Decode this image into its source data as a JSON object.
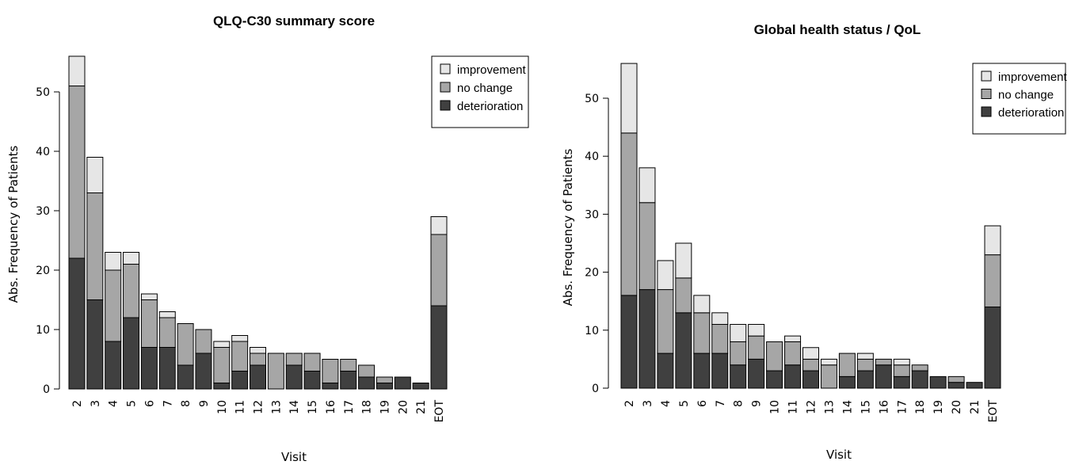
{
  "charts": [
    {
      "title": "QLQ-C30 summary score",
      "xlabel": "Visit",
      "ylabel": "Abs. Frequency of Patients"
    },
    {
      "title": "Global health status / QoL",
      "xlabel": "Visit",
      "ylabel": "Abs. Frequency of Patients"
    }
  ],
  "chart_data": [
    {
      "type": "bar",
      "stacked": true,
      "title": "QLQ-C30 summary score",
      "xlabel": "Visit",
      "ylabel": "Abs. Frequency of Patients",
      "ylim": [
        0,
        56
      ],
      "yticks": [
        0,
        10,
        20,
        30,
        40,
        50
      ],
      "categories": [
        "2",
        "3",
        "4",
        "5",
        "6",
        "7",
        "8",
        "9",
        "10",
        "11",
        "12",
        "13",
        "14",
        "15",
        "16",
        "17",
        "18",
        "19",
        "20",
        "21",
        "EOT"
      ],
      "series": [
        {
          "name": "deterioration",
          "color": "#404040",
          "values": [
            22,
            15,
            8,
            12,
            7,
            7,
            4,
            6,
            1,
            3,
            4,
            0,
            4,
            3,
            1,
            3,
            2,
            1,
            2,
            1,
            14
          ]
        },
        {
          "name": "no change",
          "color": "#a6a6a6",
          "values": [
            29,
            18,
            12,
            9,
            8,
            5,
            7,
            4,
            6,
            5,
            2,
            6,
            2,
            3,
            4,
            2,
            2,
            1,
            0,
            0,
            12
          ]
        },
        {
          "name": "improvement",
          "color": "#e6e6e6",
          "values": [
            5,
            6,
            3,
            2,
            1,
            1,
            0,
            0,
            1,
            1,
            1,
            0,
            0,
            0,
            0,
            0,
            0,
            0,
            0,
            0,
            3
          ]
        }
      ],
      "legend": {
        "position": "top-right",
        "entries": [
          "improvement",
          "no change",
          "deterioration"
        ]
      }
    },
    {
      "type": "bar",
      "stacked": true,
      "title": "Global health status / QoL",
      "xlabel": "Visit",
      "ylabel": "Abs. Frequency of Patients",
      "ylim": [
        0,
        56
      ],
      "yticks": [
        0,
        10,
        20,
        30,
        40,
        50
      ],
      "categories": [
        "2",
        "3",
        "4",
        "5",
        "6",
        "7",
        "8",
        "9",
        "10",
        "11",
        "12",
        "13",
        "14",
        "15",
        "16",
        "17",
        "18",
        "19",
        "20",
        "21",
        "EOT"
      ],
      "series": [
        {
          "name": "deterioration",
          "color": "#404040",
          "values": [
            16,
            17,
            6,
            13,
            6,
            6,
            4,
            5,
            3,
            4,
            3,
            0,
            2,
            3,
            4,
            2,
            3,
            2,
            1,
            1,
            14
          ]
        },
        {
          "name": "no change",
          "color": "#a6a6a6",
          "values": [
            28,
            15,
            11,
            6,
            7,
            5,
            4,
            4,
            5,
            4,
            2,
            4,
            4,
            2,
            1,
            2,
            1,
            0,
            1,
            0,
            9
          ]
        },
        {
          "name": "improvement",
          "color": "#e6e6e6",
          "values": [
            12,
            6,
            5,
            6,
            3,
            2,
            3,
            2,
            0,
            1,
            2,
            1,
            0,
            1,
            0,
            1,
            0,
            0,
            0,
            0,
            5
          ]
        }
      ],
      "legend": {
        "position": "top-right",
        "entries": [
          "improvement",
          "no change",
          "deterioration"
        ]
      }
    }
  ]
}
